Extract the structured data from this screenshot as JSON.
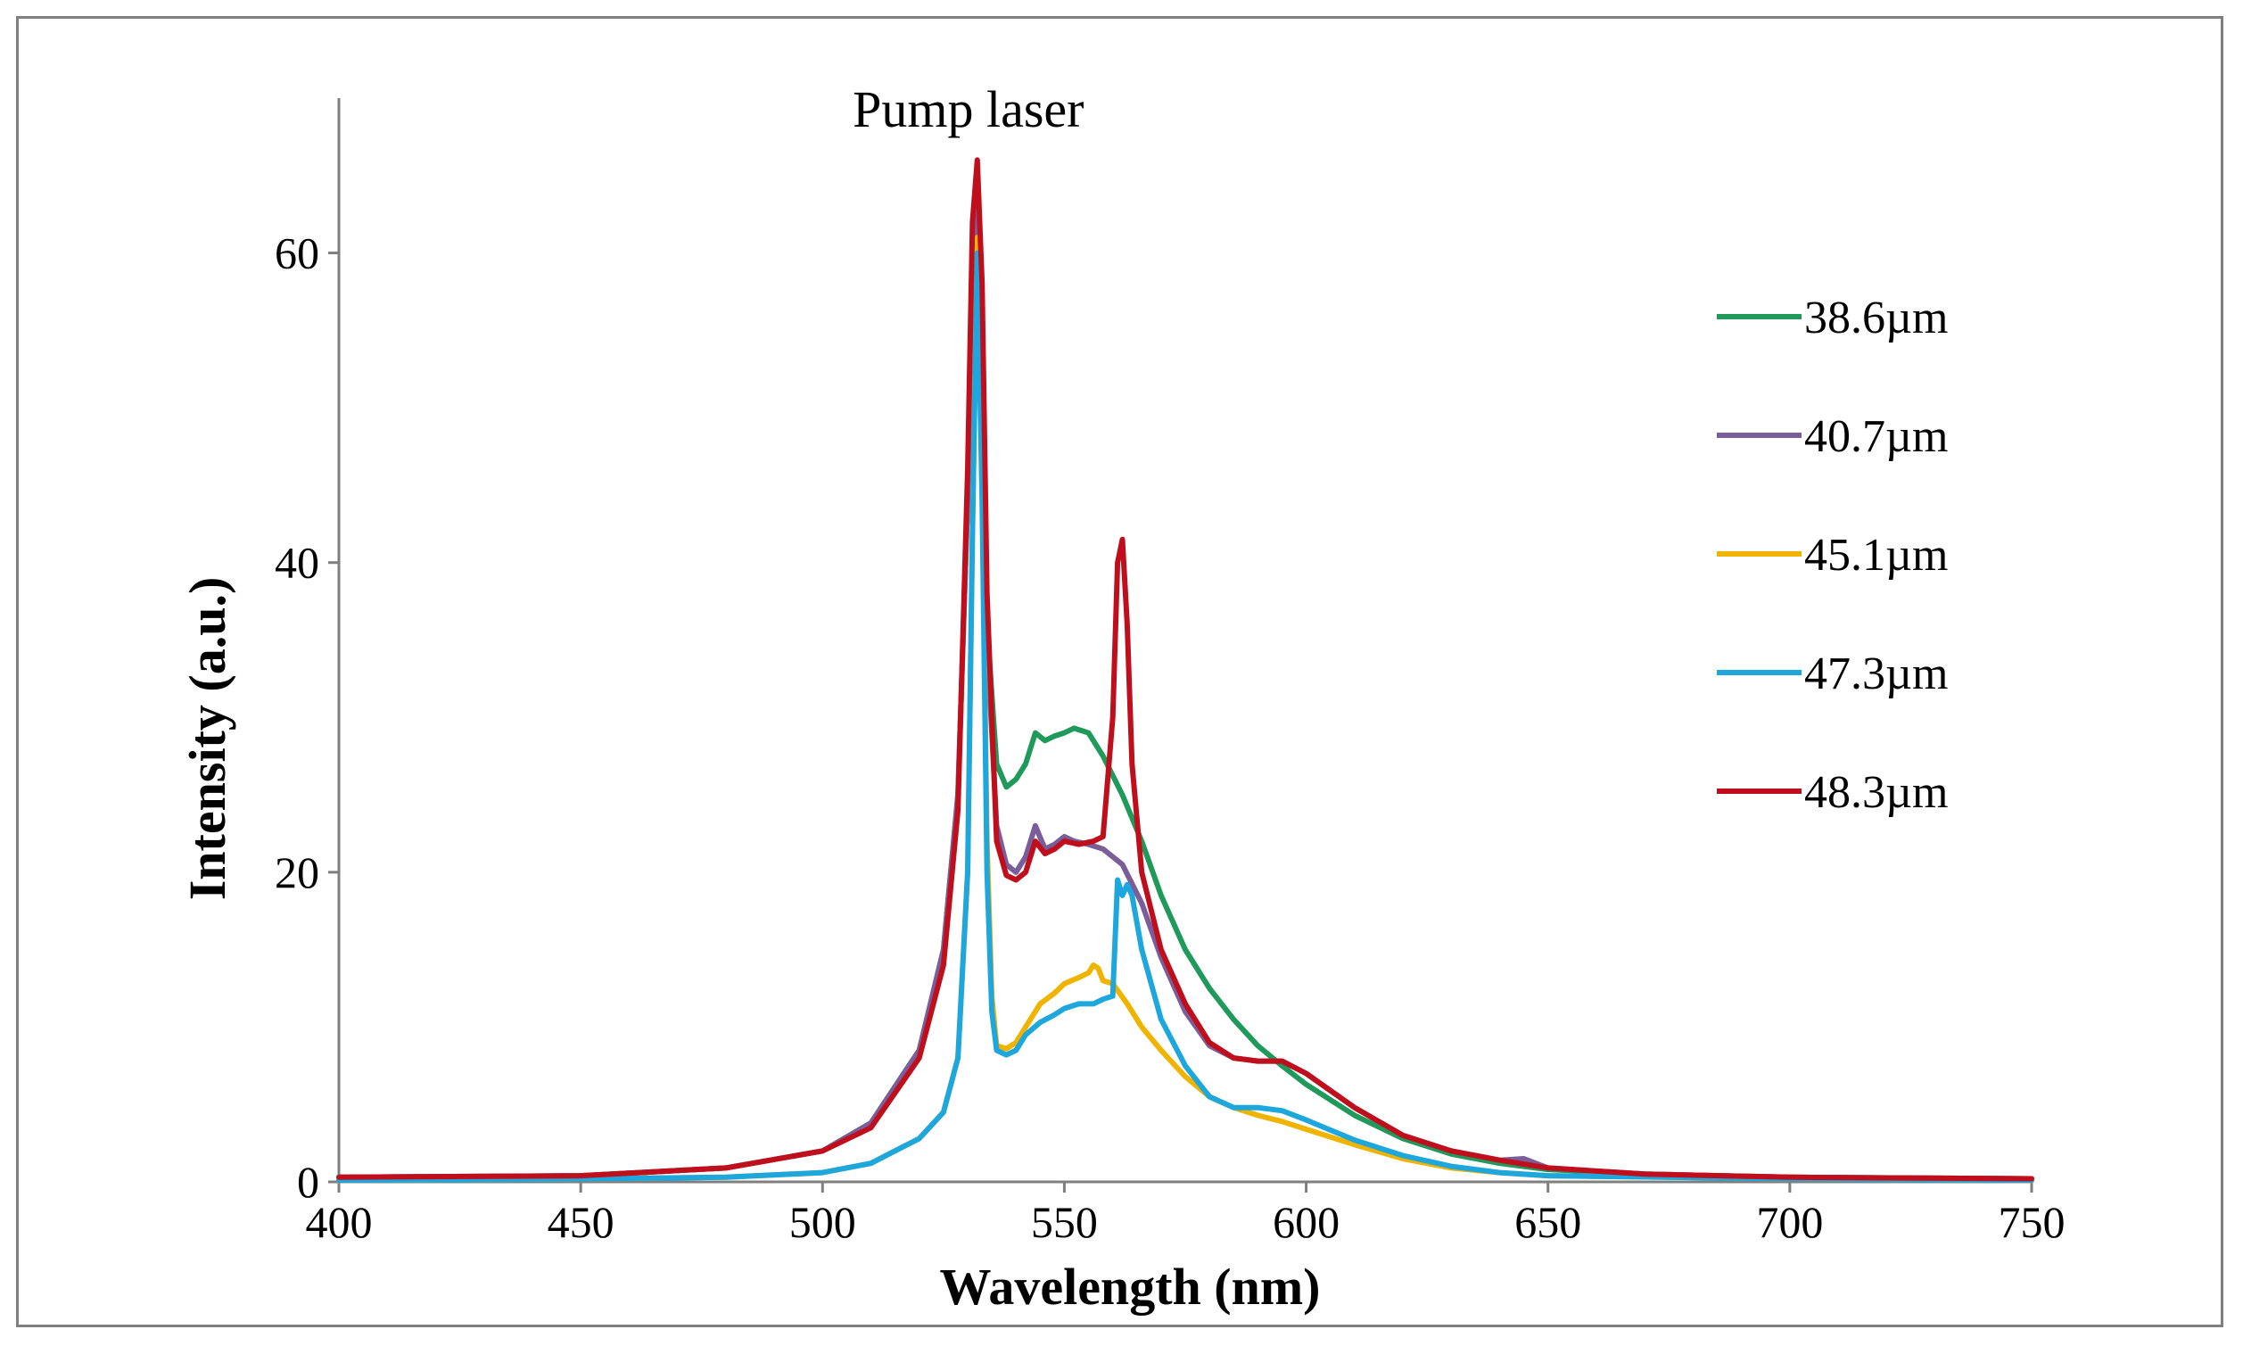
{
  "chart_data": {
    "type": "line",
    "title": "",
    "xlabel": "Wavelength (nm)",
    "ylabel": "Intensity (a.u.)",
    "xlim": [
      400,
      750
    ],
    "ylim": [
      0,
      70
    ],
    "xticks": [
      400,
      450,
      500,
      550,
      600,
      650,
      700,
      750
    ],
    "yticks": [
      0,
      20,
      40,
      60
    ],
    "xtick_labels": [
      "400",
      "450",
      "500",
      "550",
      "600",
      "650",
      "700",
      "750"
    ],
    "ytick_labels": [
      "0",
      "20",
      "40",
      "60"
    ],
    "annotation": {
      "text": "Pump laser",
      "x": 532,
      "y": 68
    },
    "legend_position": "right",
    "series": [
      {
        "name": "38.6µm",
        "color": "#1f9a5a",
        "points": [
          [
            400,
            0.3
          ],
          [
            450,
            0.4
          ],
          [
            480,
            0.9
          ],
          [
            500,
            2.0
          ],
          [
            510,
            3.8
          ],
          [
            520,
            8.5
          ],
          [
            525,
            15
          ],
          [
            528,
            25
          ],
          [
            530,
            44
          ],
          [
            531,
            56
          ],
          [
            532,
            61
          ],
          [
            533,
            52
          ],
          [
            534,
            36
          ],
          [
            536,
            27
          ],
          [
            538,
            25.5
          ],
          [
            540,
            26
          ],
          [
            542,
            27
          ],
          [
            544,
            29
          ],
          [
            546,
            28.5
          ],
          [
            548,
            28.8
          ],
          [
            550,
            29
          ],
          [
            552,
            29.3
          ],
          [
            555,
            29
          ],
          [
            558,
            27.5
          ],
          [
            562,
            25
          ],
          [
            566,
            22
          ],
          [
            570,
            18.5
          ],
          [
            575,
            15
          ],
          [
            580,
            12.5
          ],
          [
            585,
            10.5
          ],
          [
            590,
            8.8
          ],
          [
            595,
            7.5
          ],
          [
            600,
            6.3
          ],
          [
            610,
            4.3
          ],
          [
            620,
            2.8
          ],
          [
            630,
            1.8
          ],
          [
            640,
            1.2
          ],
          [
            650,
            0.8
          ],
          [
            670,
            0.5
          ],
          [
            700,
            0.3
          ],
          [
            750,
            0.2
          ]
        ]
      },
      {
        "name": "40.7µm",
        "color": "#7a5e99",
        "points": [
          [
            400,
            0.3
          ],
          [
            450,
            0.4
          ],
          [
            480,
            0.9
          ],
          [
            500,
            2.0
          ],
          [
            510,
            3.8
          ],
          [
            520,
            8.5
          ],
          [
            525,
            15
          ],
          [
            528,
            25
          ],
          [
            530,
            44
          ],
          [
            531,
            58
          ],
          [
            532,
            63
          ],
          [
            533,
            52
          ],
          [
            534,
            35
          ],
          [
            536,
            23
          ],
          [
            538,
            20.5
          ],
          [
            540,
            20
          ],
          [
            542,
            21
          ],
          [
            544,
            23
          ],
          [
            546,
            21.5
          ],
          [
            548,
            21.8
          ],
          [
            550,
            22.3
          ],
          [
            552,
            22
          ],
          [
            555,
            21.8
          ],
          [
            558,
            21.5
          ],
          [
            562,
            20.5
          ],
          [
            566,
            18
          ],
          [
            570,
            14.5
          ],
          [
            575,
            11
          ],
          [
            580,
            8.8
          ],
          [
            585,
            8
          ],
          [
            590,
            7.8
          ],
          [
            595,
            7.8
          ],
          [
            600,
            7
          ],
          [
            610,
            4.8
          ],
          [
            620,
            3
          ],
          [
            630,
            2
          ],
          [
            640,
            1.4
          ],
          [
            645,
            1.5
          ],
          [
            650,
            0.9
          ],
          [
            670,
            0.5
          ],
          [
            700,
            0.3
          ],
          [
            750,
            0.2
          ]
        ]
      },
      {
        "name": "45.1µm",
        "color": "#f0b400",
        "points": [
          [
            400,
            0.1
          ],
          [
            450,
            0.2
          ],
          [
            480,
            0.3
          ],
          [
            500,
            0.6
          ],
          [
            510,
            1.2
          ],
          [
            520,
            2.8
          ],
          [
            525,
            4.5
          ],
          [
            528,
            8
          ],
          [
            530,
            20
          ],
          [
            531,
            42
          ],
          [
            532,
            61
          ],
          [
            533,
            45
          ],
          [
            534,
            22
          ],
          [
            535,
            12
          ],
          [
            536,
            8.8
          ],
          [
            538,
            8.6
          ],
          [
            540,
            9
          ],
          [
            542,
            10
          ],
          [
            545,
            11.5
          ],
          [
            548,
            12.2
          ],
          [
            550,
            12.8
          ],
          [
            553,
            13.2
          ],
          [
            555,
            13.5
          ],
          [
            556,
            14
          ],
          [
            557,
            13.8
          ],
          [
            558,
            13
          ],
          [
            560,
            12.8
          ],
          [
            563,
            11.5
          ],
          [
            566,
            10
          ],
          [
            570,
            8.5
          ],
          [
            575,
            6.8
          ],
          [
            580,
            5.5
          ],
          [
            585,
            4.8
          ],
          [
            590,
            4.3
          ],
          [
            595,
            3.9
          ],
          [
            600,
            3.4
          ],
          [
            610,
            2.4
          ],
          [
            620,
            1.5
          ],
          [
            630,
            0.9
          ],
          [
            640,
            0.6
          ],
          [
            650,
            0.4
          ],
          [
            700,
            0.2
          ],
          [
            750,
            0.1
          ]
        ]
      },
      {
        "name": "47.3µm",
        "color": "#1ea7dc",
        "points": [
          [
            400,
            0.1
          ],
          [
            450,
            0.2
          ],
          [
            480,
            0.3
          ],
          [
            500,
            0.6
          ],
          [
            510,
            1.2
          ],
          [
            520,
            2.8
          ],
          [
            525,
            4.5
          ],
          [
            528,
            8
          ],
          [
            530,
            20
          ],
          [
            531,
            42
          ],
          [
            532,
            60
          ],
          [
            533,
            44
          ],
          [
            534,
            20
          ],
          [
            535,
            11
          ],
          [
            536,
            8.5
          ],
          [
            538,
            8.2
          ],
          [
            540,
            8.5
          ],
          [
            542,
            9.5
          ],
          [
            545,
            10.3
          ],
          [
            548,
            10.8
          ],
          [
            550,
            11.2
          ],
          [
            553,
            11.5
          ],
          [
            556,
            11.5
          ],
          [
            558,
            11.8
          ],
          [
            560,
            12
          ],
          [
            561,
            19.5
          ],
          [
            562,
            18.5
          ],
          [
            563,
            19.2
          ],
          [
            564,
            18.5
          ],
          [
            566,
            15
          ],
          [
            570,
            10.5
          ],
          [
            575,
            7.5
          ],
          [
            580,
            5.5
          ],
          [
            585,
            4.8
          ],
          [
            590,
            4.8
          ],
          [
            595,
            4.6
          ],
          [
            600,
            4
          ],
          [
            610,
            2.7
          ],
          [
            620,
            1.7
          ],
          [
            630,
            1
          ],
          [
            640,
            0.6
          ],
          [
            650,
            0.4
          ],
          [
            700,
            0.2
          ],
          [
            750,
            0.1
          ]
        ]
      },
      {
        "name": "48.3µm",
        "color": "#c00f1c",
        "points": [
          [
            400,
            0.3
          ],
          [
            450,
            0.4
          ],
          [
            480,
            0.9
          ],
          [
            500,
            2.0
          ],
          [
            510,
            3.5
          ],
          [
            520,
            8
          ],
          [
            525,
            14
          ],
          [
            528,
            24
          ],
          [
            530,
            46
          ],
          [
            531,
            62
          ],
          [
            532,
            66
          ],
          [
            533,
            58
          ],
          [
            534,
            38
          ],
          [
            536,
            22
          ],
          [
            538,
            19.8
          ],
          [
            540,
            19.5
          ],
          [
            542,
            20
          ],
          [
            544,
            22
          ],
          [
            546,
            21.2
          ],
          [
            548,
            21.5
          ],
          [
            550,
            22
          ],
          [
            553,
            21.8
          ],
          [
            556,
            22
          ],
          [
            558,
            22.3
          ],
          [
            560,
            30
          ],
          [
            561,
            40
          ],
          [
            562,
            41.5
          ],
          [
            563,
            36
          ],
          [
            564,
            27
          ],
          [
            566,
            20
          ],
          [
            570,
            15
          ],
          [
            575,
            11.5
          ],
          [
            580,
            9
          ],
          [
            585,
            8
          ],
          [
            590,
            7.8
          ],
          [
            595,
            7.8
          ],
          [
            600,
            7
          ],
          [
            610,
            4.8
          ],
          [
            620,
            3
          ],
          [
            630,
            2
          ],
          [
            640,
            1.4
          ],
          [
            650,
            0.9
          ],
          [
            670,
            0.5
          ],
          [
            700,
            0.3
          ],
          [
            750,
            0.2
          ]
        ]
      }
    ]
  }
}
